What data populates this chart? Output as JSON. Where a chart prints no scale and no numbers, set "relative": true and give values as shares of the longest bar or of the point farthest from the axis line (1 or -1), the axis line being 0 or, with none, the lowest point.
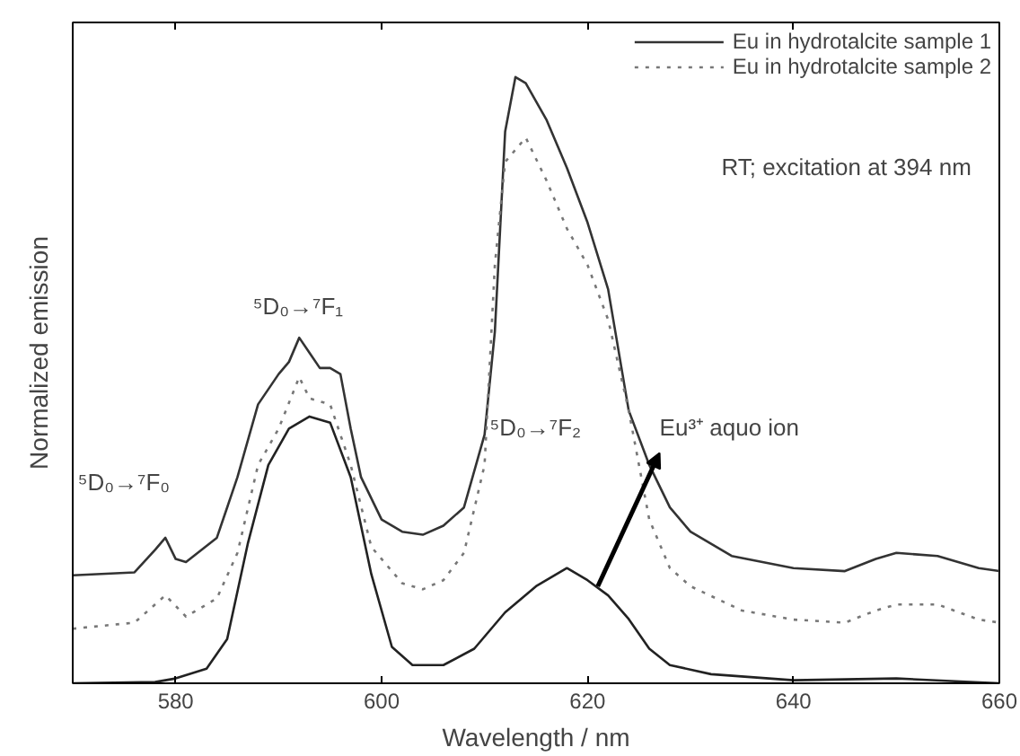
{
  "chart_data": {
    "type": "line",
    "relative": true,
    "xlabel": "Wavelength / nm",
    "ylabel": "Normalized emission",
    "xlim": [
      570,
      660
    ],
    "xticks": [
      580,
      600,
      620,
      640,
      660
    ],
    "tick_labels": "x",
    "grid": false,
    "legend": "top right",
    "marker": "none",
    "series": [
      {
        "name": "Eu in hydrotalcite sample 1",
        "color": "#333333",
        "line_style": "solid",
        "x": [
          570,
          576,
          578,
          579,
          580,
          581,
          584,
          586,
          588,
          590,
          591,
          592,
          593,
          594,
          595,
          596,
          597,
          598,
          600,
          602,
          604,
          606,
          608,
          610,
          611,
          612,
          613,
          614,
          616,
          618,
          620,
          622,
          624,
          626,
          628,
          630,
          634,
          640,
          645,
          648,
          650,
          654,
          658,
          660
        ],
        "values": [
          0.178,
          0.183,
          0.22,
          0.24,
          0.205,
          0.2,
          0.24,
          0.34,
          0.46,
          0.51,
          0.53,
          0.57,
          0.545,
          0.52,
          0.52,
          0.51,
          0.42,
          0.34,
          0.27,
          0.25,
          0.245,
          0.26,
          0.29,
          0.41,
          0.58,
          0.91,
          1.0,
          0.99,
          0.93,
          0.85,
          0.76,
          0.65,
          0.45,
          0.36,
          0.29,
          0.25,
          0.21,
          0.19,
          0.185,
          0.205,
          0.215,
          0.21,
          0.19,
          0.185
        ]
      },
      {
        "name": "Eu in hydrotalcite sample 2",
        "color": "#777777",
        "line_style": "dotted",
        "x": [
          570,
          576,
          579,
          581,
          584,
          586,
          588,
          590,
          592,
          593,
          595,
          597,
          599,
          602,
          604,
          606,
          608,
          610,
          611,
          612,
          614,
          616,
          618,
          620,
          622,
          624,
          626,
          628,
          630,
          635,
          640,
          645,
          648,
          650,
          654,
          658,
          660
        ],
        "values": [
          0.09,
          0.1,
          0.145,
          0.11,
          0.14,
          0.215,
          0.36,
          0.42,
          0.505,
          0.47,
          0.46,
          0.36,
          0.225,
          0.165,
          0.155,
          0.17,
          0.215,
          0.36,
          0.69,
          0.86,
          0.9,
          0.83,
          0.75,
          0.69,
          0.6,
          0.45,
          0.27,
          0.19,
          0.16,
          0.12,
          0.105,
          0.1,
          0.12,
          0.13,
          0.13,
          0.105,
          0.1
        ]
      },
      {
        "color": "#222222",
        "line_style": "solid",
        "x": [
          570,
          578,
          580,
          583,
          585,
          587,
          589,
          591,
          593,
          595,
          597,
          599,
          601,
          603,
          606,
          609,
          612,
          615,
          618,
          620,
          622,
          624,
          626,
          628,
          632,
          640,
          650,
          660
        ],
        "values": [
          0,
          0.002,
          0.008,
          0.024,
          0.073,
          0.23,
          0.36,
          0.42,
          0.44,
          0.43,
          0.34,
          0.18,
          0.06,
          0.03,
          0.03,
          0.057,
          0.117,
          0.16,
          0.19,
          0.17,
          0.145,
          0.106,
          0.057,
          0.03,
          0.015,
          0.005,
          0.008,
          0
        ]
      }
    ],
    "annotations": [
      "⁵D₀→⁷F₀",
      "⁵D₀→⁷F₁",
      "⁵D₀→⁷F₂",
      "RT; excitation at 394 nm",
      {
        "text": "Eu³⁺ aquo ion",
        "x": 621,
        "y": 0.16
      }
    ]
  }
}
